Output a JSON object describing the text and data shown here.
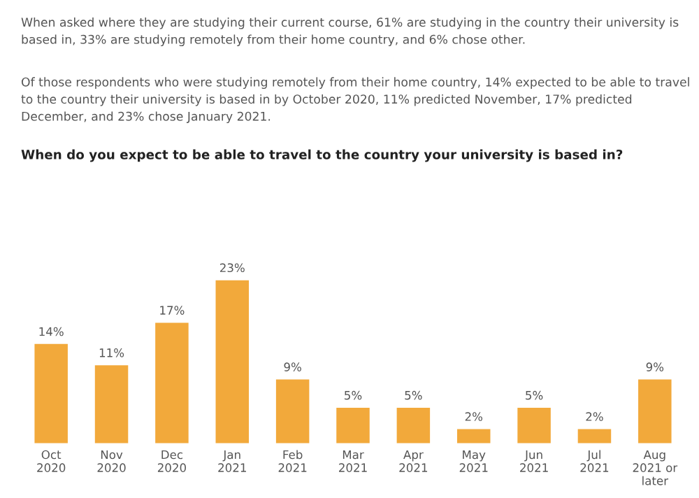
{
  "chart_data": {
    "type": "bar",
    "title": "When do you expect to be able to travel to the country your university is based in?",
    "annotations": [
      "When asked where they are studying their current course, 61% are studying in the country their university is based in, 33% are studying remotely from their home country, and 6% chose other.",
      "Of those respondents who were studying remotely from their home country, 14% expected to be able to travel to the country their university is based in by October 2020, 11% predicted November, 17% predicted December, and 23% chose January 2021."
    ],
    "categories": [
      "Oct\n2020",
      "Nov\n2020",
      "Dec\n2020",
      "Jan\n2021",
      "Feb\n2021",
      "Mar\n2021",
      "Apr\n2021",
      "May\n2021",
      "Jun\n2021",
      "Jul\n2021",
      "Aug\n2021 or\nlater"
    ],
    "values": [
      14,
      11,
      17,
      23,
      9,
      5,
      5,
      2,
      5,
      2,
      9
    ],
    "value_labels": [
      "14%",
      "11%",
      "17%",
      "23%",
      "9%",
      "5%",
      "5%",
      "2%",
      "5%",
      "2%",
      "9%"
    ],
    "color": "#f2a93b",
    "grid": false,
    "legend": false
  }
}
